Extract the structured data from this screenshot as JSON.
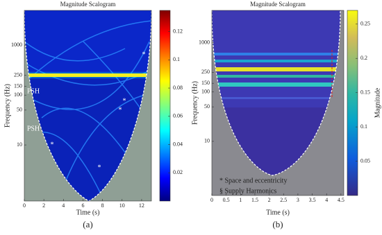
{
  "chart_data": [
    {
      "type": "scalogram",
      "title": "Magnitude Scalogram",
      "xlabel": "Time (s)",
      "ylabel": "Frequency (Hz)",
      "xlim": [
        0,
        13
      ],
      "xticks": [
        0,
        2,
        4,
        6,
        8,
        10,
        12
      ],
      "ylim": [
        0.75,
        5000
      ],
      "yticks": [
        10,
        50,
        100,
        150,
        250,
        1000
      ],
      "yscale": "log",
      "colormap": "jet",
      "clim": [
        0,
        0.135
      ],
      "cticks": [
        0.02,
        0.04,
        0.06,
        0.08,
        0.1,
        0.12
      ],
      "annotations": [
        "PSH",
        "PSH",
        "*",
        "*",
        "*",
        "*",
        "*"
      ],
      "panel_label": "(a)"
    },
    {
      "type": "scalogram",
      "title": "Magnitude Scalogram",
      "xlabel": "Time (s)",
      "ylabel": "Frequency (Hz)",
      "xlim": [
        0,
        4.6
      ],
      "xticks": [
        0,
        0.5,
        1,
        1.5,
        2,
        2.5,
        3,
        3.5,
        4,
        4.5
      ],
      "ylim": [
        0.8,
        4500
      ],
      "yticks": [
        10,
        50,
        100,
        150,
        250,
        1000
      ],
      "yscale": "log",
      "colormap": "parula",
      "clim": [
        0,
        0.27
      ],
      "cticks": [
        0.05,
        0.1,
        0.15,
        0.2,
        0.25
      ],
      "clabel": "Magnitude",
      "notes": [
        "* Space and eccentricity",
        "§ Supply Harmonics"
      ],
      "panel_label": "(b)"
    }
  ]
}
